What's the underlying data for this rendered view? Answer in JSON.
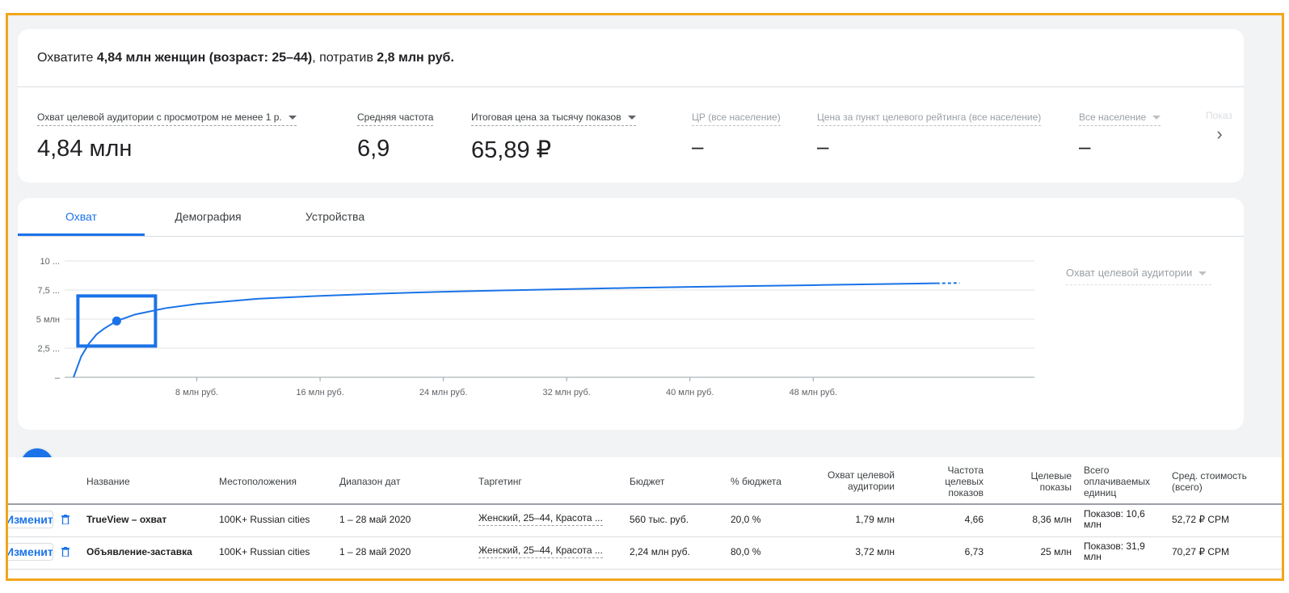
{
  "summary": {
    "prefix": "Охватите ",
    "audience": "4,84 млн женщин (возраст: 25–44)",
    "middle": ", потратив ",
    "budget": "2,8 млн руб.",
    "suffix": ""
  },
  "metrics": [
    {
      "label": "Охват целевой аудитории с просмотром не менее 1 р.",
      "value": "4,84 млн",
      "dropdown": true
    },
    {
      "label": "Средняя частота",
      "value": "6,9",
      "dropdown": false
    },
    {
      "label": "Итоговая цена за тысячу показов",
      "value": "65,89 ₽",
      "dropdown": true
    },
    {
      "label": "ЦР (все население)",
      "value": "–",
      "dropdown": false
    },
    {
      "label": "Цена за пункт целевого рейтинга (все население)",
      "value": "–",
      "dropdown": false
    },
    {
      "label": "Все население",
      "value": "–",
      "dropdown": true
    }
  ],
  "metrics_overflow": "Показ",
  "tabs": [
    {
      "label": "Охват",
      "active": true
    },
    {
      "label": "Демография",
      "active": false
    },
    {
      "label": "Устройства",
      "active": false
    }
  ],
  "chart_dropdown": "Охват целевой аудитории",
  "chart_data": {
    "type": "line",
    "title": "",
    "xlabel": "",
    "ylabel": "",
    "y_tick_labels": [
      "10 ...",
      "7,5 ...",
      "5 млн",
      "2,5 ...",
      "–"
    ],
    "x_tick_labels": [
      "8 млн руб.",
      "16 млн руб.",
      "24 млн руб.",
      "32 млн руб.",
      "40 млн руб.",
      "48 млн руб."
    ],
    "xlim": [
      0,
      60
    ],
    "ylim": [
      0,
      10
    ],
    "x": [
      0,
      0.5,
      1,
      1.5,
      2,
      2.8,
      4,
      6,
      8,
      12,
      16,
      20,
      24,
      28,
      32,
      36,
      40,
      44,
      48,
      52,
      56
    ],
    "y": [
      0,
      1.8,
      2.9,
      3.7,
      4.2,
      4.84,
      5.4,
      5.95,
      6.3,
      6.75,
      7.0,
      7.2,
      7.35,
      7.47,
      7.58,
      7.68,
      7.77,
      7.85,
      7.92,
      8.0,
      8.08
    ],
    "projected_to": {
      "x": 57.5,
      "y": 8.1
    },
    "highlighted_point": {
      "x": 2.8,
      "y": 4.84
    },
    "grid": true,
    "line_color": "#1a73e8"
  },
  "fab_label": "+",
  "table": {
    "headers": [
      "Название",
      "Местоположения",
      "Диапазон дат",
      "Таргетинг",
      "Бюджет",
      "% бюджета",
      "Охват целевой аудитории",
      "Частота целевых показов",
      "Целевые показы",
      "Всего оплачиваемых единиц",
      "Сред. стоимость (всего)"
    ],
    "edit_label": "Изменить",
    "rows": [
      {
        "name": "TrueView – охват",
        "locations": "100K+ Russian cities",
        "dates": "1 – 28 май 2020",
        "targeting": "Женский, 25–44, Красота ...",
        "budget": "560 тыс. руб.",
        "budget_pct": "20,0 %",
        "reach": "1,79 млн",
        "frequency": "4,66",
        "impressions": "8,36 млн",
        "units": "Показов: 10,6 млн",
        "avg_cost": "52,72 ₽ CPM"
      },
      {
        "name": "Объявление-заставка",
        "locations": "100K+ Russian cities",
        "dates": "1 – 28 май 2020",
        "targeting": "Женский, 25–44, Красота ...",
        "budget": "2,24 млн руб.",
        "budget_pct": "80,0 %",
        "reach": "3,72 млн",
        "frequency": "6,73",
        "impressions": "25 млн",
        "units": "Показов: 31,9 млн",
        "avg_cost": "70,27 ₽ CPM"
      }
    ]
  }
}
